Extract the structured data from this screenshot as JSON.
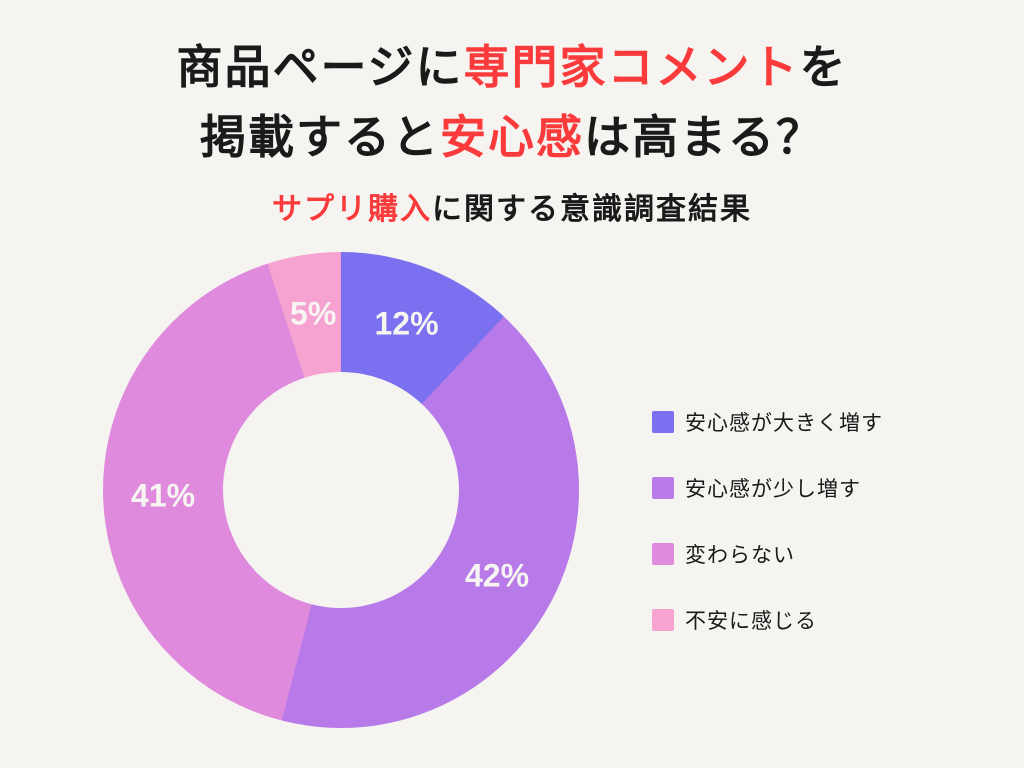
{
  "page": {
    "background_color": "#f5f4f1",
    "accent_red": "#fb3b3b",
    "text_black": "#1a1a1a"
  },
  "title": {
    "line1_segments": [
      {
        "text": "商品ページに",
        "color": "#1a1a1a"
      },
      {
        "text": "専門家コメント",
        "color": "#fb3b3b"
      },
      {
        "text": "を",
        "color": "#1a1a1a"
      }
    ],
    "line2_segments": [
      {
        "text": "掲載すると",
        "color": "#1a1a1a"
      },
      {
        "text": "安心感",
        "color": "#fb3b3b"
      },
      {
        "text": "は高まる？",
        "color": "#1a1a1a"
      }
    ],
    "subtitle_segments": [
      {
        "text": "サプリ購入",
        "color": "#fb3b3b"
      },
      {
        "text": "に関する意識調査結果",
        "color": "#1a1a1a"
      }
    ]
  },
  "chart_data": {
    "type": "pie",
    "subtype": "donut",
    "title": "商品ページに専門家コメントを掲載すると安心感は高まる？",
    "subtitle": "サプリ購入に関する意識調査結果",
    "start_angle_deg": 0,
    "direction": "clockwise",
    "categories": [
      "安心感が大きく増す",
      "安心感が少し増す",
      "変わらない",
      "不安に感じる"
    ],
    "values": [
      12,
      42,
      41,
      5
    ],
    "colors": [
      "#7b70ef",
      "#b87ae8",
      "#df8adc",
      "#f7a3d2"
    ],
    "value_labels": [
      "12%",
      "42%",
      "41%",
      "5%"
    ],
    "value_label_color": "#f7f5f2",
    "label_radius_fraction": 0.748,
    "outer_radius_px": 238,
    "inner_radius_px": 118,
    "legend_position": "right",
    "grid": false
  },
  "legend": {
    "items": [
      {
        "label": "安心感が大きく増す",
        "color": "#7b70ef"
      },
      {
        "label": "安心感が少し増す",
        "color": "#b87ae8"
      },
      {
        "label": "変わらない",
        "color": "#df8adc"
      },
      {
        "label": "不安に感じる",
        "color": "#f7a3d2"
      }
    ]
  }
}
